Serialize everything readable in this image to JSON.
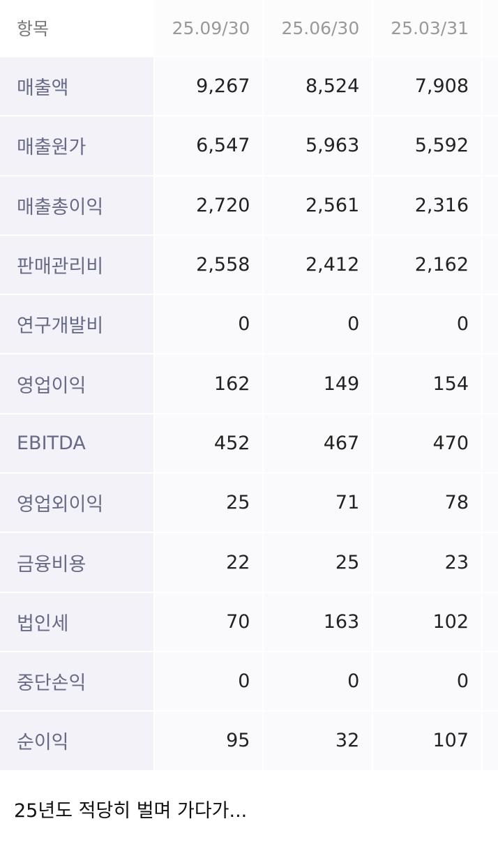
{
  "table": {
    "header": [
      "항목",
      "25.09/30",
      "25.06/30",
      "25.03/31"
    ],
    "rows": [
      [
        "매출액",
        "9,267",
        "8,524",
        "7,908"
      ],
      [
        "매출원가",
        "6,547",
        "5,963",
        "5,592"
      ],
      [
        "매출총이익",
        "2,720",
        "2,561",
        "2,316"
      ],
      [
        "판매관리비",
        "2,558",
        "2,412",
        "2,162"
      ],
      [
        "연구개발비",
        "0",
        "0",
        "0"
      ],
      [
        "영업이익",
        "162",
        "149",
        "154"
      ],
      [
        "EBITDA",
        "452",
        "467",
        "470"
      ],
      [
        "영업외이익",
        "25",
        "71",
        "78"
      ],
      [
        "금융비용",
        "22",
        "25",
        "23"
      ],
      [
        "법인세",
        "70",
        "163",
        "102"
      ],
      [
        "중단손익",
        "0",
        "0",
        "0"
      ],
      [
        "순이익",
        "95",
        "32",
        "107"
      ]
    ]
  },
  "caption": "25년도 적당히 벌며 가다가..."
}
